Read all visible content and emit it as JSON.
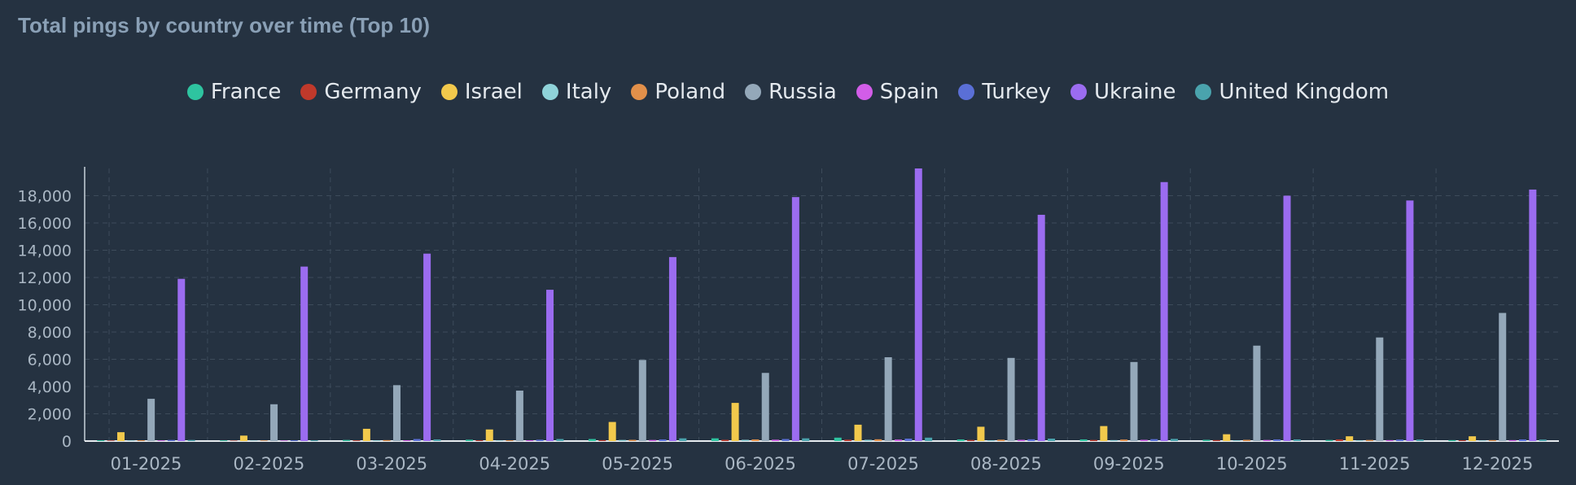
{
  "title": "Total pings by country over time (Top 10)",
  "chart_data": {
    "type": "bar",
    "title": "Total pings by country over time (Top 10)",
    "xlabel": "",
    "ylabel": "",
    "ylim": [
      0,
      20000
    ],
    "yticks": [
      0,
      2000,
      4000,
      6000,
      8000,
      10000,
      12000,
      14000,
      16000,
      18000
    ],
    "ytick_labels": [
      "0",
      "2,000",
      "4,000",
      "6,000",
      "8,000",
      "10,000",
      "12,000",
      "14,000",
      "16,000",
      "18,000"
    ],
    "grid": true,
    "legend_position": "top-center",
    "categories": [
      "01-2025",
      "02-2025",
      "03-2025",
      "04-2025",
      "05-2025",
      "06-2025",
      "07-2025",
      "08-2025",
      "09-2025",
      "10-2025",
      "11-2025",
      "12-2025"
    ],
    "series": [
      {
        "name": "France",
        "color": "#2ec4a0",
        "values": [
          60,
          50,
          80,
          100,
          150,
          200,
          250,
          120,
          120,
          90,
          80,
          70
        ]
      },
      {
        "name": "Germany",
        "color": "#c0392b",
        "values": [
          40,
          30,
          50,
          60,
          70,
          90,
          100,
          80,
          80,
          70,
          120,
          60
        ]
      },
      {
        "name": "Israel",
        "color": "#f2c94c",
        "values": [
          650,
          400,
          900,
          850,
          1400,
          2800,
          1200,
          1050,
          1100,
          500,
          350,
          350
        ]
      },
      {
        "name": "Italy",
        "color": "#8fd3d9",
        "values": [
          40,
          30,
          50,
          40,
          80,
          90,
          90,
          60,
          70,
          60,
          50,
          40
        ]
      },
      {
        "name": "Poland",
        "color": "#e2904a",
        "values": [
          60,
          40,
          70,
          60,
          90,
          120,
          130,
          100,
          110,
          90,
          80,
          70
        ]
      },
      {
        "name": "Russia",
        "color": "#94a8b9",
        "values": [
          3100,
          2700,
          4100,
          3700,
          5950,
          5000,
          6150,
          6100,
          5800,
          7000,
          7600,
          9400
        ]
      },
      {
        "name": "Spain",
        "color": "#d25de8",
        "values": [
          50,
          40,
          60,
          60,
          80,
          100,
          110,
          90,
          90,
          80,
          70,
          70
        ]
      },
      {
        "name": "Turkey",
        "color": "#5a6fd6",
        "values": [
          80,
          60,
          150,
          100,
          120,
          150,
          180,
          130,
          140,
          120,
          110,
          120
        ]
      },
      {
        "name": "Ukraine",
        "color": "#9b6cf0",
        "values": [
          11900,
          12800,
          13750,
          11100,
          13500,
          17900,
          20000,
          16600,
          19000,
          18000,
          17650,
          18450
        ]
      },
      {
        "name": "United Kingdom",
        "color": "#4aa3ad",
        "values": [
          80,
          60,
          120,
          150,
          200,
          200,
          250,
          180,
          160,
          120,
          110,
          110
        ]
      }
    ]
  }
}
